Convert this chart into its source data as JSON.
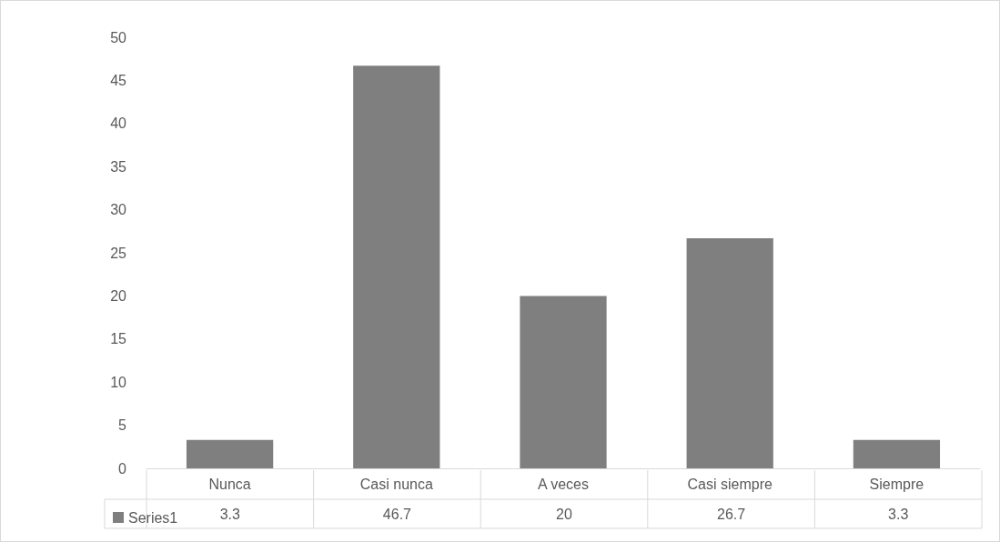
{
  "chart_data": {
    "type": "bar",
    "categories": [
      "Nunca",
      "Casi nunca",
      "A veces",
      "Casi siempre",
      "Siempre"
    ],
    "series": [
      {
        "name": "Series1",
        "color": "#7f7f7f",
        "values": [
          3.3,
          46.7,
          20,
          26.7,
          3.3
        ]
      }
    ],
    "ylim": [
      0,
      50
    ],
    "yticks": [
      0,
      5,
      10,
      15,
      20,
      25,
      30,
      35,
      40,
      45,
      50
    ],
    "grid": false,
    "legend": "bottom",
    "data_labels": true
  }
}
